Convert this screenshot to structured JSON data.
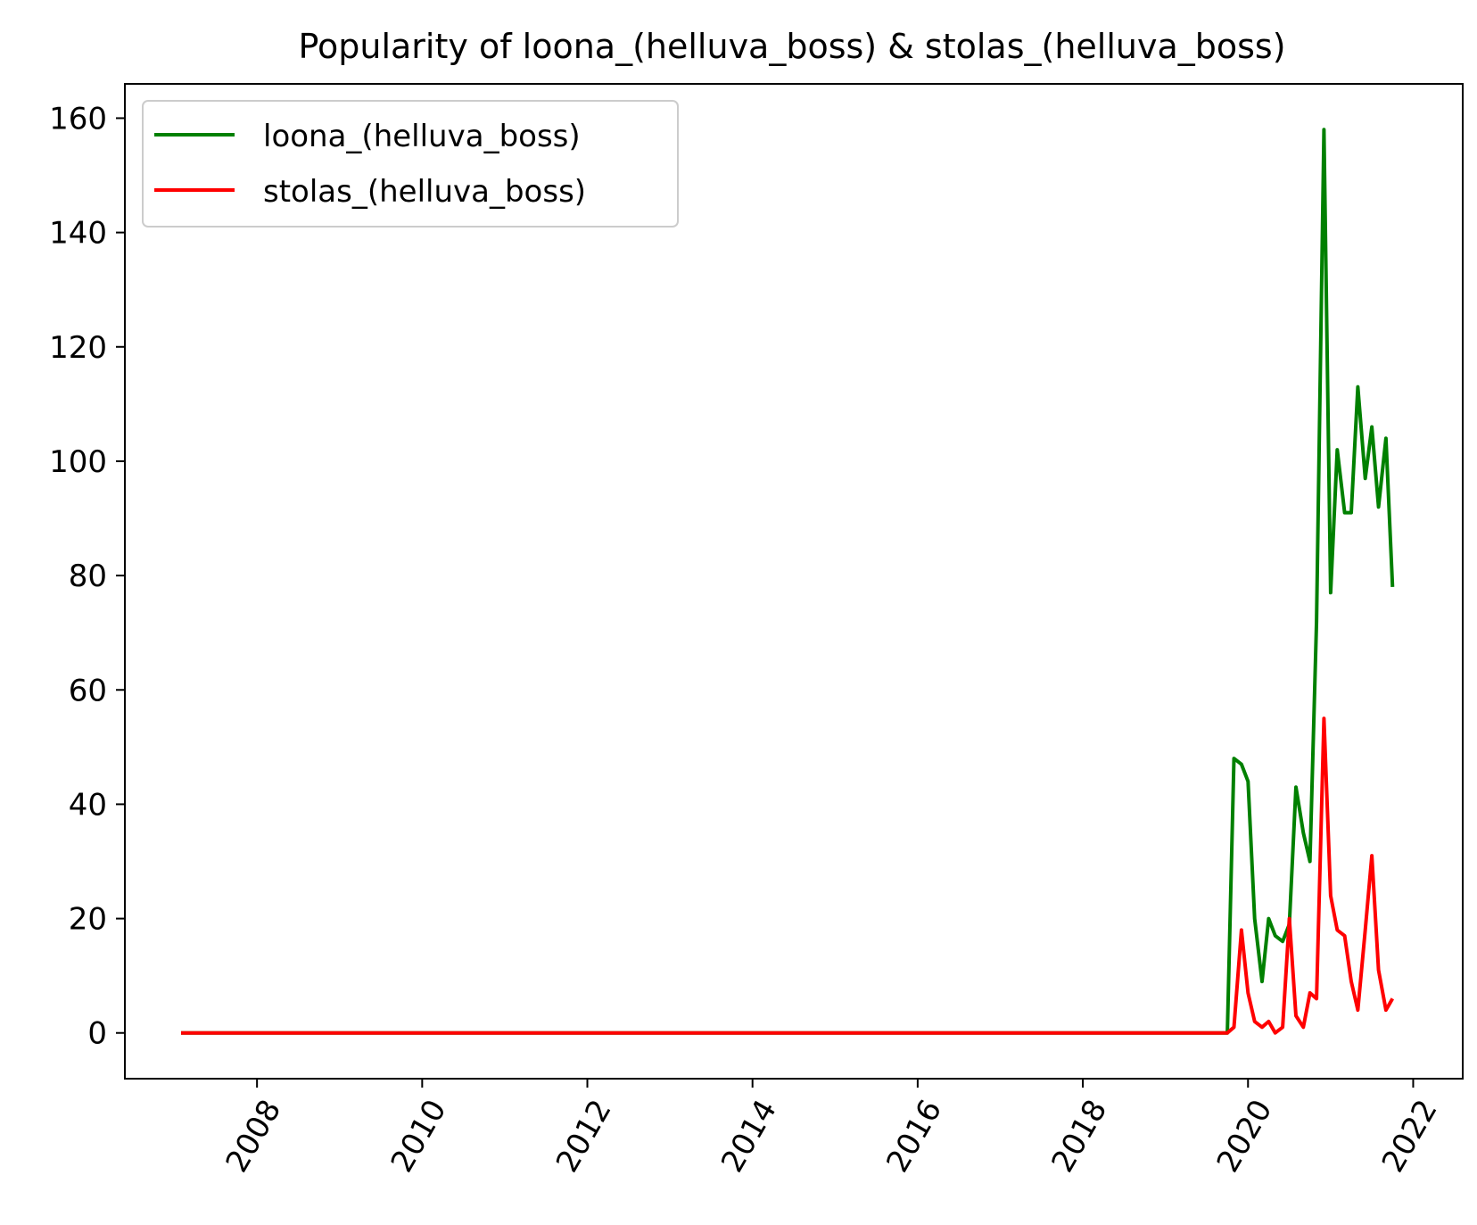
{
  "chart_data": {
    "type": "line",
    "title": "Popularity of loona_(helluva_boss) & stolas_(helluva_boss)",
    "xlabel": "",
    "ylabel": "",
    "xlim": [
      2006.4,
      2022.6
    ],
    "ylim": [
      -8,
      166
    ],
    "xticks": [
      2008,
      2010,
      2012,
      2014,
      2016,
      2018,
      2020,
      2022
    ],
    "xtick_labels": [
      "2008",
      "2010",
      "2012",
      "2014",
      "2016",
      "2018",
      "2020",
      "2022"
    ],
    "yticks": [
      0,
      20,
      40,
      60,
      80,
      100,
      120,
      140,
      160
    ],
    "ytick_labels": [
      "0",
      "20",
      "40",
      "60",
      "80",
      "100",
      "120",
      "140",
      "160"
    ],
    "grid": false,
    "legend_position": "top-left",
    "series": [
      {
        "name": "loona_(helluva_boss)",
        "color": "#008000",
        "points": [
          [
            2007.08,
            0
          ],
          [
            2019.75,
            0
          ],
          [
            2019.83,
            48
          ],
          [
            2019.92,
            47
          ],
          [
            2020.0,
            44
          ],
          [
            2020.08,
            20
          ],
          [
            2020.17,
            9
          ],
          [
            2020.25,
            20
          ],
          [
            2020.33,
            17
          ],
          [
            2020.42,
            16
          ],
          [
            2020.5,
            19
          ],
          [
            2020.58,
            43
          ],
          [
            2020.67,
            35
          ],
          [
            2020.75,
            30
          ],
          [
            2020.83,
            72
          ],
          [
            2020.92,
            158
          ],
          [
            2021.0,
            77
          ],
          [
            2021.08,
            102
          ],
          [
            2021.17,
            91
          ],
          [
            2021.25,
            91
          ],
          [
            2021.33,
            113
          ],
          [
            2021.42,
            97
          ],
          [
            2021.5,
            106
          ],
          [
            2021.58,
            92
          ],
          [
            2021.67,
            104
          ],
          [
            2021.75,
            78
          ]
        ]
      },
      {
        "name": "stolas_(helluva_boss)",
        "color": "#ff0000",
        "points": [
          [
            2007.08,
            0
          ],
          [
            2019.75,
            0
          ],
          [
            2019.83,
            1
          ],
          [
            2019.92,
            18
          ],
          [
            2020.0,
            7
          ],
          [
            2020.08,
            2
          ],
          [
            2020.17,
            1
          ],
          [
            2020.25,
            2
          ],
          [
            2020.33,
            0
          ],
          [
            2020.42,
            1
          ],
          [
            2020.5,
            20
          ],
          [
            2020.58,
            3
          ],
          [
            2020.67,
            1
          ],
          [
            2020.75,
            7
          ],
          [
            2020.83,
            6
          ],
          [
            2020.92,
            55
          ],
          [
            2021.0,
            24
          ],
          [
            2021.08,
            18
          ],
          [
            2021.17,
            17
          ],
          [
            2021.25,
            9
          ],
          [
            2021.33,
            4
          ],
          [
            2021.42,
            18
          ],
          [
            2021.5,
            31
          ],
          [
            2021.58,
            11
          ],
          [
            2021.67,
            4
          ],
          [
            2021.75,
            6
          ]
        ]
      }
    ]
  }
}
